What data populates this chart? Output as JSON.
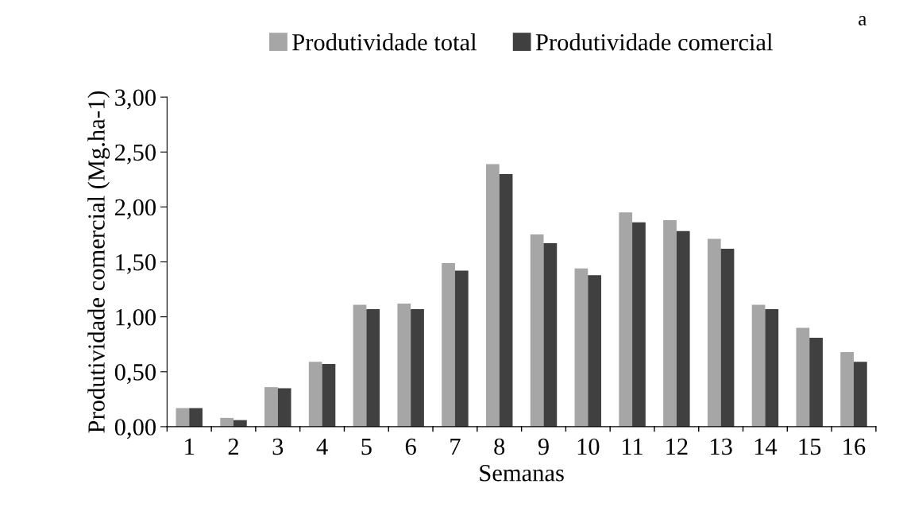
{
  "chart_data": {
    "type": "bar",
    "xlabel": "Semanas",
    "ylabel": "Produtividade comercial (Mg.ha-1)",
    "annotations": [
      "a"
    ],
    "categories": [
      "1",
      "2",
      "3",
      "4",
      "5",
      "6",
      "7",
      "8",
      "9",
      "10",
      "11",
      "12",
      "13",
      "14",
      "15",
      "16"
    ],
    "series": [
      {
        "name": "Produtividade total",
        "color": "#a6a6a6",
        "values": [
          0.17,
          0.08,
          0.36,
          0.59,
          1.11,
          1.12,
          1.49,
          2.39,
          1.75,
          1.44,
          1.95,
          1.88,
          1.71,
          1.11,
          0.9,
          0.68
        ]
      },
      {
        "name": "Produtividade comercial",
        "color": "#404040",
        "values": [
          0.17,
          0.06,
          0.35,
          0.57,
          1.07,
          1.07,
          1.42,
          2.3,
          1.67,
          1.38,
          1.86,
          1.78,
          1.62,
          1.07,
          0.81,
          0.59
        ]
      }
    ],
    "ylim": [
      0,
      3
    ],
    "yticks": [
      {
        "value": 0,
        "label": "0,00"
      },
      {
        "value": 0.5,
        "label": "0,50"
      },
      {
        "value": 1,
        "label": "1,00"
      },
      {
        "value": 1.5,
        "label": "1,50"
      },
      {
        "value": 2,
        "label": "2,00"
      },
      {
        "value": 2.5,
        "label": "2,50"
      },
      {
        "value": 3,
        "label": "3,00"
      }
    ],
    "grid": false,
    "legend": "top"
  }
}
